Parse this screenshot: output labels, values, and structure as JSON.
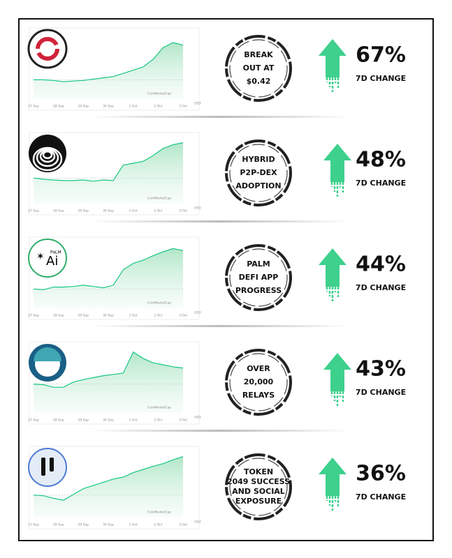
{
  "dates": [
    "27 Sep",
    "28 Sep",
    "29 Sep",
    "30 Sep",
    "1 Oct",
    "2 Oct",
    "3 Oct"
  ],
  "source": "CoinMarketCap",
  "currency": "USD",
  "rows": [
    {
      "caption": [
        "BREAK",
        "OUT AT",
        "$0.42"
      ],
      "change": "67%",
      "change_label": "7D CHANGE",
      "chart": {
        "type": "line",
        "ylim": [
          0,
          100
        ],
        "values": [
          30,
          30,
          29,
          27,
          28,
          29,
          31,
          33,
          35,
          40,
          45,
          50,
          62,
          80,
          88,
          84
        ]
      }
    },
    {
      "caption": [
        "HYBRID",
        "P2P-DEX",
        "ADOPTION"
      ],
      "change": "48%",
      "change_label": "7D CHANGE",
      "chart": {
        "type": "line",
        "ylim": [
          0,
          100
        ],
        "values": [
          40,
          38,
          37,
          36,
          36,
          37,
          35,
          37,
          36,
          60,
          63,
          66,
          75,
          86,
          92,
          95
        ]
      }
    },
    {
      "logo_text": [
        "PaLM",
        "Ai"
      ],
      "caption": [
        "PALM",
        "DEFI APP",
        "PROGRESS"
      ],
      "change": "44%",
      "change_label": "7D CHANGE",
      "chart": {
        "type": "line",
        "ylim": [
          0,
          100
        ],
        "values": [
          30,
          29,
          33,
          33,
          34,
          36,
          34,
          32,
          36,
          60,
          70,
          75,
          82,
          88,
          93,
          90
        ]
      }
    },
    {
      "caption": [
        "OVER",
        "20,000",
        "RELAYS"
      ],
      "change": "43%",
      "change_label": "7D CHANGE",
      "chart": {
        "type": "line",
        "ylim": [
          0,
          100
        ],
        "values": [
          45,
          44,
          40,
          40,
          48,
          52,
          55,
          58,
          60,
          62,
          95,
          85,
          78,
          75,
          72,
          70
        ]
      }
    },
    {
      "caption": [
        "TOKEN",
        "2049 SUCCESS",
        "AND SOCIAL",
        "EXPOSURE"
      ],
      "change": "36%",
      "change_label": "7D CHANGE",
      "chart": {
        "type": "line",
        "ylim": [
          0,
          100
        ],
        "values": [
          35,
          34,
          30,
          27,
          36,
          45,
          50,
          55,
          60,
          63,
          70,
          75,
          80,
          84,
          90,
          95
        ]
      }
    }
  ]
}
